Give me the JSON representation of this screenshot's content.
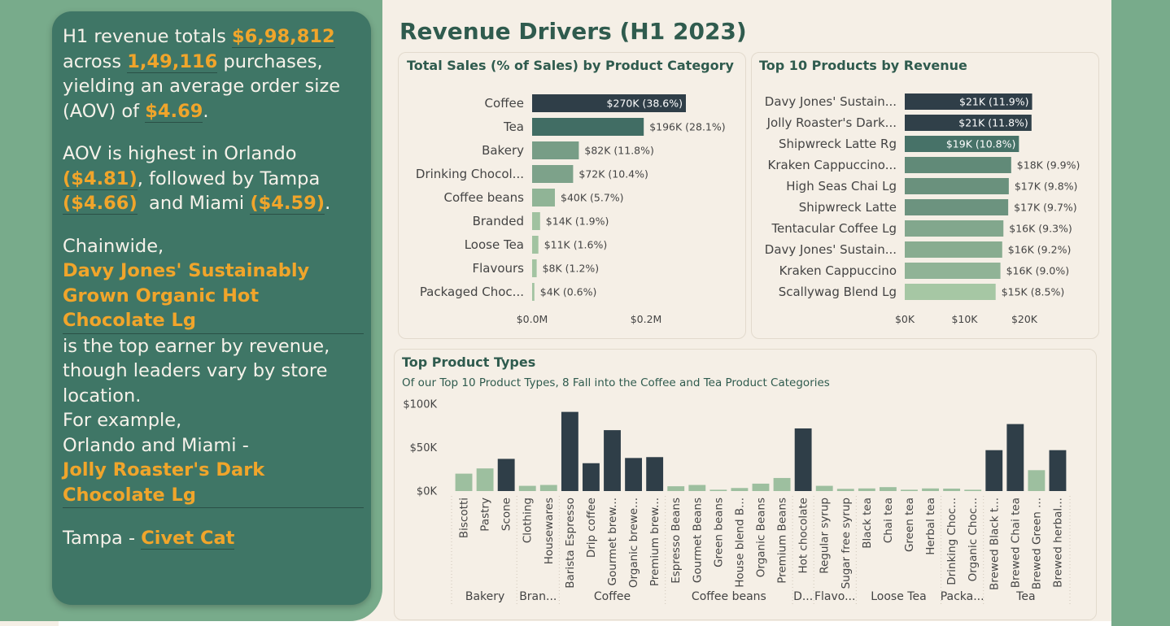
{
  "title": "Revenue Drivers (H1 2023)",
  "narrative": {
    "p1": {
      "t1": "H1 revenue totals ",
      "v1": "$6,98,812",
      "t2": " across ",
      "v2": "1,49,116",
      "t3": " purchases, yielding an average order size (AOV) of ",
      "v3": "$4.69",
      "t4": "."
    },
    "p2": {
      "t1": "AOV is highest in Orlando ",
      "v1": "($4.81)",
      "t2": ", followed by Tampa ",
      "v2": "($4.66)",
      "t3": "  and Miami ",
      "v3": "($4.59)",
      "t4": "."
    },
    "p3": {
      "t1": "Chainwide,",
      "v1": "Davy Jones' Sustainably Grown Organic Hot Chocolate Lg",
      "t2": "is the top earner by revenue, though leaders vary by store location.",
      "t3": "For example,",
      "t4": "Orlando and Miami -",
      "v2": "Jolly Roaster's Dark Chocolate Lg"
    },
    "p4": {
      "t1": "Tampa - ",
      "v1": "Civet Cat"
    }
  },
  "colors": {
    "dark": "#2f3e48",
    "teal": "#3f6b63",
    "mid": "#6b927e",
    "light": "#9dbf9f",
    "accent": "#f0a52b",
    "panel": "#3f7666"
  },
  "chart_data": [
    {
      "type": "bar",
      "orientation": "horizontal",
      "title": "Total Sales (% of Sales) by Product Category",
      "categories": [
        "Coffee",
        "Tea",
        "Bakery",
        "Drinking Chocol...",
        "Coffee beans",
        "Branded",
        "Loose Tea",
        "Flavours",
        "Packaged Choc..."
      ],
      "values": [
        270000,
        196000,
        82000,
        72000,
        40000,
        14000,
        11000,
        8000,
        4000
      ],
      "data_labels": [
        "$270K (38.6%)",
        "$196K (28.1%)",
        "$82K (11.8%)",
        "$72K (10.4%)",
        "$40K (5.7%)",
        "$14K (1.9%)",
        "$11K (1.6%)",
        "$8K (1.2%)",
        "$4K (0.6%)"
      ],
      "xlim": [
        0,
        270000
      ],
      "xticks": [
        {
          "v": 0,
          "label": "$0.0M"
        },
        {
          "v": 200000,
          "label": "$0.2M"
        }
      ]
    },
    {
      "type": "bar",
      "orientation": "horizontal",
      "title": "Top 10 Products by Revenue",
      "categories": [
        "Davy Jones' Sustain...",
        "Jolly Roaster's Dark...",
        "Shipwreck Latte Rg",
        "Kraken Cappuccino...",
        "High Seas Chai Lg",
        "Shipwreck Latte",
        "Tentacular Coffee Lg",
        "Davy Jones' Sustain...",
        "Kraken Cappuccino",
        "Scallywag Blend Lg"
      ],
      "values": [
        21300,
        21200,
        19100,
        17800,
        17400,
        17300,
        16500,
        16300,
        16000,
        15200
      ],
      "data_labels": [
        "$21K (11.9%)",
        "$21K (11.8%)",
        "$19K (10.8%)",
        "$18K (9.9%)",
        "$17K (9.8%)",
        "$17K (9.7%)",
        "$16K (9.3%)",
        "$16K (9.2%)",
        "$16K (9.0%)",
        "$15K (8.5%)"
      ],
      "xlim": [
        0,
        21500
      ],
      "xticks": [
        {
          "v": 0,
          "label": "$0K"
        },
        {
          "v": 10000,
          "label": "$10K"
        },
        {
          "v": 20000,
          "label": "$20K"
        }
      ]
    },
    {
      "type": "bar",
      "orientation": "vertical",
      "title": "Top Product Types",
      "subtitle": "Of our Top 10 Product Types, 8 Fall into the Coffee and Tea Product Categories",
      "ylim": [
        0,
        100000
      ],
      "yticks": [
        {
          "v": 0,
          "label": "$0K"
        },
        {
          "v": 50000,
          "label": "$50K"
        },
        {
          "v": 100000,
          "label": "$100K"
        }
      ],
      "groups": [
        {
          "name": "Bakery",
          "items": [
            {
              "label": "Biscotti",
              "value": 20000,
              "top": false
            },
            {
              "label": "Pastry",
              "value": 26000,
              "top": false
            },
            {
              "label": "Scone",
              "value": 37000,
              "top": true
            }
          ]
        },
        {
          "name": "Bran...",
          "items": [
            {
              "label": "Clothing",
              "value": 6000,
              "top": false
            },
            {
              "label": "Housewares",
              "value": 7000,
              "top": false
            }
          ]
        },
        {
          "name": "Coffee",
          "items": [
            {
              "label": "Barista Espresso",
              "value": 91000,
              "top": true
            },
            {
              "label": "Drip coffee",
              "value": 32000,
              "top": true
            },
            {
              "label": "Gourmet brew...",
              "value": 70000,
              "top": true
            },
            {
              "label": "Organic brewe...",
              "value": 38000,
              "top": true
            },
            {
              "label": "Premium brew...",
              "value": 39000,
              "top": true
            }
          ]
        },
        {
          "name": "Coffee beans",
          "items": [
            {
              "label": "Espresso Beans",
              "value": 5500,
              "top": false
            },
            {
              "label": "Gourmet Beans",
              "value": 7000,
              "top": false
            },
            {
              "label": "Green beans",
              "value": 1500,
              "top": false
            },
            {
              "label": "House blend B...",
              "value": 3500,
              "top": false
            },
            {
              "label": "Organic Beans",
              "value": 8500,
              "top": false
            },
            {
              "label": "Premium Beans",
              "value": 15000,
              "top": false
            }
          ]
        },
        {
          "name": "D...",
          "items": [
            {
              "label": "Hot chocolate",
              "value": 72000,
              "top": true
            }
          ]
        },
        {
          "name": "Flavo...",
          "items": [
            {
              "label": "Regular syrup",
              "value": 6000,
              "top": false
            },
            {
              "label": "Sugar free syrup",
              "value": 2500,
              "top": false
            }
          ]
        },
        {
          "name": "Loose Tea",
          "items": [
            {
              "label": "Black tea",
              "value": 3000,
              "top": false
            },
            {
              "label": "Chai tea",
              "value": 4500,
              "top": false
            },
            {
              "label": "Green tea",
              "value": 1500,
              "top": false
            },
            {
              "label": "Herbal tea",
              "value": 3000,
              "top": false
            }
          ]
        },
        {
          "name": "Packa...",
          "items": [
            {
              "label": "Drinking Choc...",
              "value": 2800,
              "top": false
            },
            {
              "label": "Organic Choc...",
              "value": 1500,
              "top": false
            }
          ]
        },
        {
          "name": "Tea",
          "items": [
            {
              "label": "Brewed Black t...",
              "value": 47000,
              "top": true
            },
            {
              "label": "Brewed Chai tea",
              "value": 77000,
              "top": true
            },
            {
              "label": "Brewed Green ...",
              "value": 24000,
              "top": false
            },
            {
              "label": "Brewed herbal...",
              "value": 47000,
              "top": true
            }
          ]
        }
      ]
    }
  ]
}
